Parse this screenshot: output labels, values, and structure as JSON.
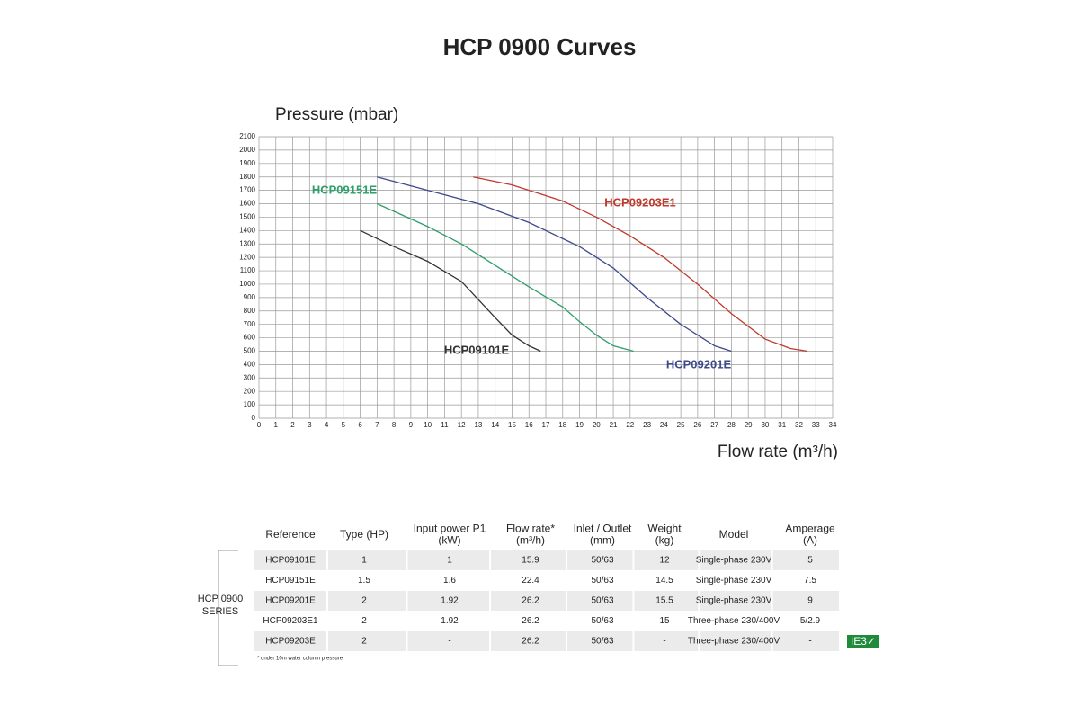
{
  "chart_data": {
    "type": "line",
    "title": "HCP 0900 Curves",
    "y_label": "Pressure (mbar)",
    "x_label": "Flow rate (m³/h)",
    "xlim": [
      0,
      34
    ],
    "xticks": [
      0,
      1,
      2,
      3,
      4,
      5,
      6,
      7,
      8,
      9,
      10,
      11,
      12,
      13,
      14,
      15,
      16,
      17,
      18,
      19,
      20,
      21,
      22,
      23,
      24,
      25,
      26,
      27,
      28,
      29,
      30,
      31,
      32,
      33,
      34
    ],
    "ylim": [
      0,
      2100
    ],
    "yticks": [
      0,
      100,
      200,
      300,
      400,
      500,
      600,
      700,
      800,
      900,
      1000,
      1100,
      1200,
      1300,
      1400,
      1500,
      1600,
      1700,
      1800,
      1900,
      2000,
      2100
    ],
    "grid": true,
    "series": [
      {
        "name": "HCP09101E",
        "color": "#333333",
        "x": [
          6,
          8,
          10,
          12,
          14,
          15,
          16,
          16.7
        ],
        "values": [
          1400,
          1280,
          1170,
          1020,
          750,
          620,
          540,
          500
        ]
      },
      {
        "name": "HCP09151E",
        "color": "#2e9e6a",
        "x": [
          7,
          10,
          12,
          14,
          16,
          18,
          19,
          20,
          21,
          22.2
        ],
        "values": [
          1600,
          1430,
          1300,
          1140,
          980,
          830,
          720,
          620,
          540,
          500
        ]
      },
      {
        "name": "HCP09201E",
        "color": "#3d4a8c",
        "x": [
          7,
          10,
          13,
          16,
          19,
          21,
          23,
          25,
          27,
          28
        ],
        "values": [
          1800,
          1700,
          1600,
          1460,
          1280,
          1120,
          900,
          700,
          540,
          500
        ]
      },
      {
        "name": "HCP09203E1",
        "color": "#c0392b",
        "x": [
          12.7,
          15,
          18,
          20,
          22,
          24,
          26,
          28,
          30,
          31.5,
          32.5
        ],
        "values": [
          1800,
          1740,
          1620,
          1500,
          1360,
          1200,
          1000,
          780,
          590,
          520,
          500
        ]
      }
    ]
  },
  "table": {
    "group_label": [
      "HCP 0900",
      "SERIES"
    ],
    "headers": [
      [
        "Reference"
      ],
      [
        "Type (HP)"
      ],
      [
        "Input power P1",
        "(kW)"
      ],
      [
        "Flow rate*",
        "(m³/h)"
      ],
      [
        "Inlet / Outlet",
        "(mm)"
      ],
      [
        "Weight",
        "(kg)"
      ],
      [
        "Model"
      ],
      [
        "Amperage",
        "(A)"
      ]
    ],
    "rows": [
      [
        "HCP09101E",
        "1",
        "1",
        "15.9",
        "50/63",
        "12",
        "Single-phase 230V",
        "5"
      ],
      [
        "HCP09151E",
        "1.5",
        "1.6",
        "22.4",
        "50/63",
        "14.5",
        "Single-phase 230V",
        "7.5"
      ],
      [
        "HCP09201E",
        "2",
        "1.92",
        "26.2",
        "50/63",
        "15.5",
        "Single-phase 230V",
        "9"
      ],
      [
        "HCP09203E1",
        "2",
        "1.92",
        "26.2",
        "50/63",
        "15",
        "Three-phase 230/400V",
        "5/2.9"
      ],
      [
        "HCP09203E",
        "2",
        "-",
        "26.2",
        "50/63",
        "-",
        "Three-phase 230/400V",
        "-"
      ]
    ],
    "badge": "IE3✓",
    "footnote": "* under 10m water column pressure"
  }
}
